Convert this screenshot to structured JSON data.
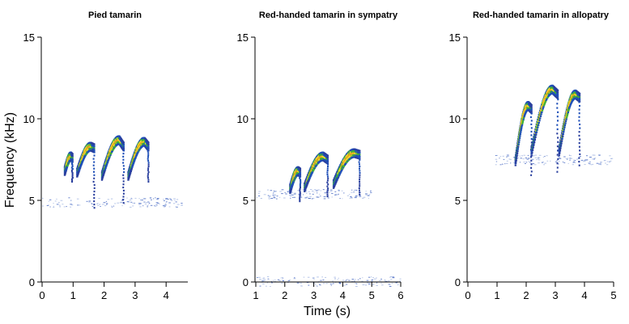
{
  "figure": {
    "ylabel": "Frequency (kHz)",
    "xlabel": "Time (s)"
  },
  "chart_data": [
    {
      "type": "scatter",
      "title": "Pied tamarin",
      "xlabel": "",
      "ylabel": "Frequency (kHz)",
      "xlim": [
        0,
        4.7
      ],
      "ylim": [
        0,
        15
      ],
      "xticks": [
        0,
        1,
        2,
        3,
        4
      ],
      "yticks": [
        0,
        5,
        10,
        15
      ],
      "grid": false,
      "syllables": [
        {
          "t0": 0.7,
          "t1": 0.95,
          "f0": 6.8,
          "f1": 7.6,
          "fpeak": 7.7,
          "tail": 6.2
        },
        {
          "t0": 1.1,
          "t1": 1.65,
          "f0": 6.7,
          "f1": 8.2,
          "fpeak": 8.3,
          "tail": 4.6
        },
        {
          "t0": 1.9,
          "t1": 2.6,
          "f0": 6.5,
          "f1": 8.3,
          "fpeak": 8.7,
          "tail": 4.9
        },
        {
          "t0": 2.75,
          "t1": 3.4,
          "f0": 6.5,
          "f1": 8.3,
          "fpeak": 8.6,
          "tail": 6.2
        }
      ],
      "noise_bands": [
        {
          "t0": 0,
          "t1": 4.5,
          "f": 4.9
        }
      ]
    },
    {
      "type": "scatter",
      "title": "Red-handed tamarin in sympatry",
      "xlabel": "Time (s)",
      "ylabel": "",
      "xlim": [
        1,
        6
      ],
      "ylim": [
        0,
        15
      ],
      "xticks": [
        1,
        2,
        3,
        4,
        5,
        6
      ],
      "yticks": [
        0,
        5,
        10,
        15
      ],
      "grid": false,
      "syllables": [
        {
          "t0": 2.15,
          "t1": 2.5,
          "f0": 5.7,
          "f1": 6.7,
          "fpeak": 6.8,
          "tail": 5.0
        },
        {
          "t0": 2.65,
          "t1": 3.45,
          "f0": 5.8,
          "f1": 7.5,
          "fpeak": 7.7,
          "tail": 5.3
        },
        {
          "t0": 3.65,
          "t1": 4.55,
          "f0": 6.0,
          "f1": 7.8,
          "fpeak": 7.9,
          "tail": 5.4
        }
      ],
      "noise_bands": [
        {
          "t0": 1.0,
          "t1": 5.0,
          "f": 5.4
        },
        {
          "t0": 1.0,
          "t1": 6.0,
          "f": 0.05
        }
      ]
    },
    {
      "type": "scatter",
      "title": "Red-handed tamarin in allopatry",
      "xlabel": "",
      "ylabel": "",
      "xlim": [
        0,
        5
      ],
      "ylim": [
        0,
        15
      ],
      "xticks": [
        0,
        1,
        2,
        3,
        4,
        5
      ],
      "yticks": [
        0,
        5,
        10,
        15
      ],
      "grid": false,
      "syllables": [
        {
          "t0": 1.6,
          "t1": 2.15,
          "f0": 7.4,
          "f1": 10.6,
          "fpeak": 10.8,
          "tail": 6.6
        },
        {
          "t0": 2.15,
          "t1": 3.05,
          "f0": 8.0,
          "f1": 11.5,
          "fpeak": 11.8,
          "tail": 6.8
        },
        {
          "t0": 3.1,
          "t1": 3.8,
          "f0": 8.0,
          "f1": 11.3,
          "fpeak": 11.5,
          "tail": 7.2
        }
      ],
      "noise_bands": [
        {
          "t0": 0.9,
          "t1": 4.9,
          "f": 7.5
        }
      ]
    }
  ]
}
